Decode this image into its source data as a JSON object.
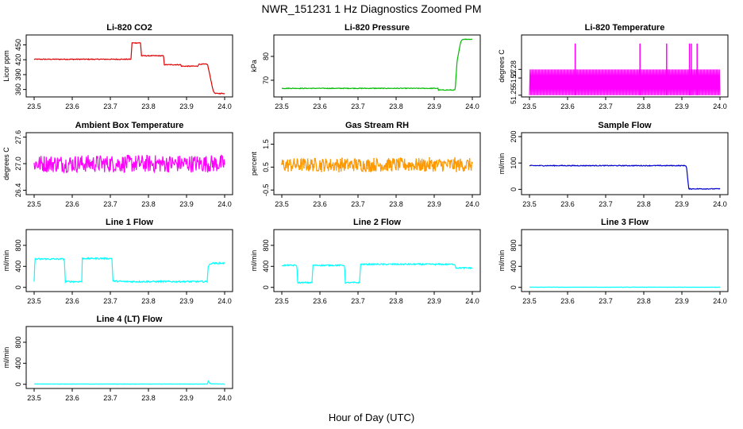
{
  "figure": {
    "title": "NWR_151231  1 Hz Diagnostics Zoomed PM",
    "xlabel": "Hour of Day (UTC)"
  },
  "chart_data": [
    {
      "type": "line",
      "title": "Li-820 CO2",
      "ylabel": "Licor ppm",
      "color": "#dd0000",
      "xlim": [
        23.5,
        24.0
      ],
      "ylim": [
        345,
        470
      ],
      "xticks": [
        "23.5",
        "23.6",
        "23.7",
        "23.8",
        "23.9",
        "24.0"
      ],
      "yticks": [
        {
          "v": 360,
          "label": "360"
        },
        {
          "v": 390,
          "label": "390"
        },
        {
          "v": 420,
          "label": "420"
        },
        {
          "v": 450,
          "label": "450"
        }
      ],
      "noise": 0.8,
      "series": [
        {
          "x": [
            23.5,
            23.755,
            23.756,
            23.78,
            23.781,
            23.84,
            23.841,
            23.885,
            23.886,
            23.93,
            23.931,
            23.955,
            23.97,
            23.975,
            24.0
          ],
          "y": [
            421,
            421,
            454,
            454,
            428,
            428,
            410,
            410,
            407,
            407,
            411,
            411,
            357,
            352,
            352
          ]
        }
      ]
    },
    {
      "type": "line",
      "title": "Li-820 Pressure",
      "ylabel": "kPa",
      "color": "#00bb00",
      "xlim": [
        23.5,
        24.0
      ],
      "ylim": [
        63,
        89
      ],
      "xticks": [
        "23.5",
        "23.6",
        "23.7",
        "23.8",
        "23.9",
        "24.0"
      ],
      "yticks": [
        {
          "v": 70,
          "label": "70"
        },
        {
          "v": 80,
          "label": "80"
        }
      ],
      "noise": 0.15,
      "series": [
        {
          "x": [
            23.5,
            23.91,
            23.911,
            23.955,
            23.96,
            23.97,
            23.975,
            24.0
          ],
          "y": [
            66.6,
            66.6,
            65.9,
            65.9,
            78,
            86.5,
            87.2,
            87.2
          ]
        }
      ]
    },
    {
      "type": "line",
      "title": "Li-820 Temperature",
      "ylabel": "degrees C",
      "color": "#ff00ff",
      "xlim": [
        23.5,
        24.0
      ],
      "ylim": [
        51.248,
        51.32
      ],
      "xticks": [
        "23.5",
        "23.6",
        "23.7",
        "23.8",
        "23.9",
        "24.0"
      ],
      "yticks": [
        {
          "v": 51.25,
          "label": "51.25"
        },
        {
          "v": 51.27,
          "label": "51.27"
        },
        {
          "v": 51.28,
          "label": "51.28"
        }
      ],
      "mode": "toggle",
      "levels": [
        51.25,
        51.28
      ],
      "spike_level": 51.31,
      "spikes": [
        23.62,
        23.79,
        23.86,
        23.92,
        23.925,
        23.94
      ],
      "series": [
        {
          "x": [
            23.5,
            24.0
          ],
          "y": [
            51.25,
            51.28
          ]
        }
      ]
    },
    {
      "type": "line",
      "title": "Ambient Box Temperature",
      "ylabel": "degrees C",
      "color": "#ff00ff",
      "xlim": [
        23.5,
        24.0
      ],
      "ylim": [
        26.3,
        27.7
      ],
      "xticks": [
        "23.5",
        "23.6",
        "23.7",
        "23.8",
        "23.9",
        "24.0"
      ],
      "yticks": [
        {
          "v": 26.4,
          "label": "26.4"
        },
        {
          "v": 27.0,
          "label": "27.0"
        },
        {
          "v": 27.6,
          "label": "27.6"
        }
      ],
      "noise": 0.2,
      "series": [
        {
          "x": [
            23.5,
            24.0
          ],
          "y": [
            27.0,
            27.0
          ]
        }
      ]
    },
    {
      "type": "line",
      "title": "Gas Stream RH",
      "ylabel": "percent",
      "color": "#ff9900",
      "xlim": [
        23.5,
        24.0
      ],
      "ylim": [
        -0.7,
        2.0
      ],
      "xticks": [
        "23.5",
        "23.6",
        "23.7",
        "23.8",
        "23.9",
        "24.0"
      ],
      "yticks": [
        {
          "v": -0.5,
          "label": "-0.5"
        },
        {
          "v": 0.5,
          "label": "0.5"
        },
        {
          "v": 1.5,
          "label": "1.5"
        }
      ],
      "noise": 0.3,
      "points": true,
      "series": [
        {
          "x": [
            23.5,
            24.0
          ],
          "y": [
            0.6,
            0.6
          ]
        }
      ]
    },
    {
      "type": "line",
      "title": "Sample Flow",
      "ylabel": "ml/min",
      "color": "#0000cc",
      "xlim": [
        23.5,
        24.0
      ],
      "ylim": [
        -20,
        215
      ],
      "xticks": [
        "23.5",
        "23.6",
        "23.7",
        "23.8",
        "23.9",
        "24.0"
      ],
      "yticks": [
        {
          "v": 0,
          "label": "0"
        },
        {
          "v": 100,
          "label": "100"
        },
        {
          "v": 200,
          "label": "200"
        }
      ],
      "noise": 1.5,
      "series": [
        {
          "x": [
            23.5,
            23.91,
            23.912,
            23.918,
            24.0
          ],
          "y": [
            90,
            90,
            87,
            2,
            2
          ]
        }
      ]
    },
    {
      "type": "line",
      "title": "Line 1 Flow",
      "ylabel": "ml/min",
      "color": "#00ffff",
      "xlim": [
        23.5,
        24.0
      ],
      "ylim": [
        -80,
        1100
      ],
      "xticks": [
        "23.5",
        "23.6",
        "23.7",
        "23.8",
        "23.9",
        "24.0"
      ],
      "yticks": [
        {
          "v": 0,
          "label": "0"
        },
        {
          "v": 400,
          "label": "400"
        },
        {
          "v": 800,
          "label": "800"
        }
      ],
      "noise": 14,
      "series": [
        {
          "x": [
            23.5,
            23.502,
            23.58,
            23.581,
            23.625,
            23.626,
            23.705,
            23.706,
            23.74,
            23.741,
            23.955,
            23.956,
            23.965,
            24.0
          ],
          "y": [
            120,
            540,
            540,
            110,
            110,
            550,
            550,
            120,
            110,
            110,
            110,
            400,
            460,
            460
          ]
        }
      ]
    },
    {
      "type": "line",
      "title": "Line 2 Flow",
      "ylabel": "ml/min",
      "color": "#00ffff",
      "xlim": [
        23.5,
        24.0
      ],
      "ylim": [
        -80,
        1100
      ],
      "xticks": [
        "23.5",
        "23.6",
        "23.7",
        "23.8",
        "23.9",
        "24.0"
      ],
      "yticks": [
        {
          "v": 0,
          "label": "0"
        },
        {
          "v": 400,
          "label": "400"
        },
        {
          "v": 800,
          "label": "800"
        }
      ],
      "noise": 12,
      "series": [
        {
          "x": [
            23.5,
            23.54,
            23.541,
            23.58,
            23.581,
            23.665,
            23.666,
            23.705,
            23.706,
            23.955,
            23.956,
            24.0
          ],
          "y": [
            420,
            420,
            90,
            90,
            420,
            420,
            90,
            90,
            440,
            440,
            370,
            370
          ]
        }
      ]
    },
    {
      "type": "line",
      "title": "Line 3 Flow",
      "ylabel": "ml/min",
      "color": "#00ffff",
      "xlim": [
        23.5,
        24.0
      ],
      "ylim": [
        -80,
        1100
      ],
      "xticks": [
        "23.5",
        "23.6",
        "23.7",
        "23.8",
        "23.9",
        "24.0"
      ],
      "yticks": [
        {
          "v": 0,
          "label": "0"
        },
        {
          "v": 400,
          "label": "400"
        },
        {
          "v": 800,
          "label": "800"
        }
      ],
      "noise": 2,
      "series": [
        {
          "x": [
            23.5,
            24.0
          ],
          "y": [
            3,
            3
          ]
        }
      ]
    },
    {
      "type": "line",
      "title": "Line 4 (LT) Flow",
      "ylabel": "ml/min",
      "color": "#00ffff",
      "xlim": [
        23.5,
        24.0
      ],
      "ylim": [
        -80,
        1100
      ],
      "xticks": [
        "23.5",
        "23.6",
        "23.7",
        "23.8",
        "23.9",
        "24.0"
      ],
      "yticks": [
        {
          "v": 0,
          "label": "0"
        },
        {
          "v": 400,
          "label": "400"
        },
        {
          "v": 800,
          "label": "800"
        }
      ],
      "noise": 3,
      "series": [
        {
          "x": [
            23.5,
            23.955,
            23.957,
            23.962,
            24.0
          ],
          "y": [
            5,
            5,
            60,
            10,
            5
          ]
        }
      ]
    }
  ]
}
